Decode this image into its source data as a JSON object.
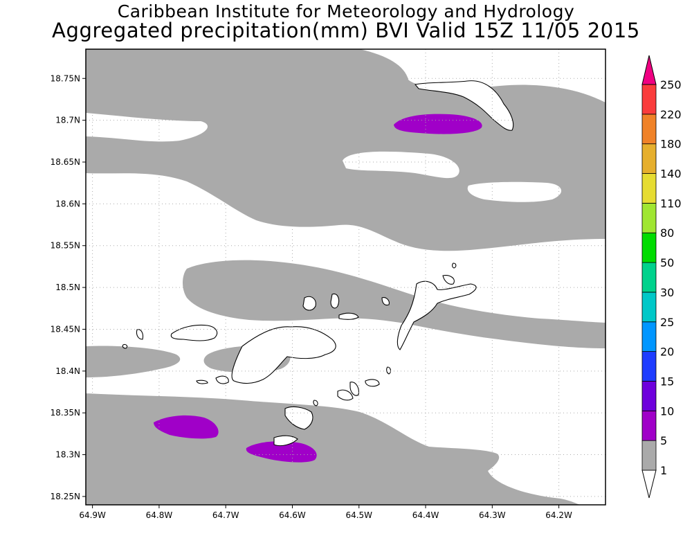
{
  "title": {
    "line1": "Caribbean Institute for Meteorology and Hydrology",
    "line2": "Aggregated precipitation(mm) BVI Valid 15Z 11/05 2015"
  },
  "map": {
    "projection": "lat-lon",
    "lon_range": [
      -64.91,
      -64.13
    ],
    "lat_range": [
      18.24,
      18.785
    ],
    "x_ticks": [
      {
        "value": -64.9,
        "label": "64.9W"
      },
      {
        "value": -64.8,
        "label": "64.8W"
      },
      {
        "value": -64.7,
        "label": "64.7W"
      },
      {
        "value": -64.6,
        "label": "64.6W"
      },
      {
        "value": -64.5,
        "label": "64.5W"
      },
      {
        "value": -64.4,
        "label": "64.4W"
      },
      {
        "value": -64.3,
        "label": "64.3W"
      },
      {
        "value": -64.2,
        "label": "64.2W"
      }
    ],
    "y_ticks": [
      {
        "value": 18.25,
        "label": "18.25N"
      },
      {
        "value": 18.3,
        "label": "18.3N"
      },
      {
        "value": 18.35,
        "label": "18.35N"
      },
      {
        "value": 18.4,
        "label": "18.4N"
      },
      {
        "value": 18.45,
        "label": "18.45N"
      },
      {
        "value": 18.5,
        "label": "18.5N"
      },
      {
        "value": 18.55,
        "label": "18.55N"
      },
      {
        "value": 18.6,
        "label": "18.6N"
      },
      {
        "value": 18.65,
        "label": "18.65N"
      },
      {
        "value": 18.7,
        "label": "18.7N"
      },
      {
        "value": 18.75,
        "label": "18.75N"
      }
    ],
    "grid": "dotted"
  },
  "colorbar": {
    "levels": [
      {
        "label": "1",
        "color": "#ffffff"
      },
      {
        "label": "5",
        "color": "#aaaaaa"
      },
      {
        "label": "10",
        "color": "#a000c8"
      },
      {
        "label": "15",
        "color": "#6e00dc"
      },
      {
        "label": "20",
        "color": "#1e3cff"
      },
      {
        "label": "25",
        "color": "#0096ff"
      },
      {
        "label": "30",
        "color": "#00c8c8"
      },
      {
        "label": "50",
        "color": "#00d28c"
      },
      {
        "label": "80",
        "color": "#00dc00"
      },
      {
        "label": "110",
        "color": "#a0e632"
      },
      {
        "label": "140",
        "color": "#e6dc32"
      },
      {
        "label": "180",
        "color": "#e6af2d"
      },
      {
        "label": "220",
        "color": "#f08228"
      },
      {
        "label": "250",
        "color": "#fa3c3c"
      }
    ],
    "top_arrow_color": "#f00082",
    "bottom_arrow_color": "#ffffff"
  },
  "colors": {
    "shade_1_5": "#aaaaaa",
    "shade_5_10": "#a000c8",
    "land_fill": "#ffffff",
    "coast_outline": "#000000"
  }
}
